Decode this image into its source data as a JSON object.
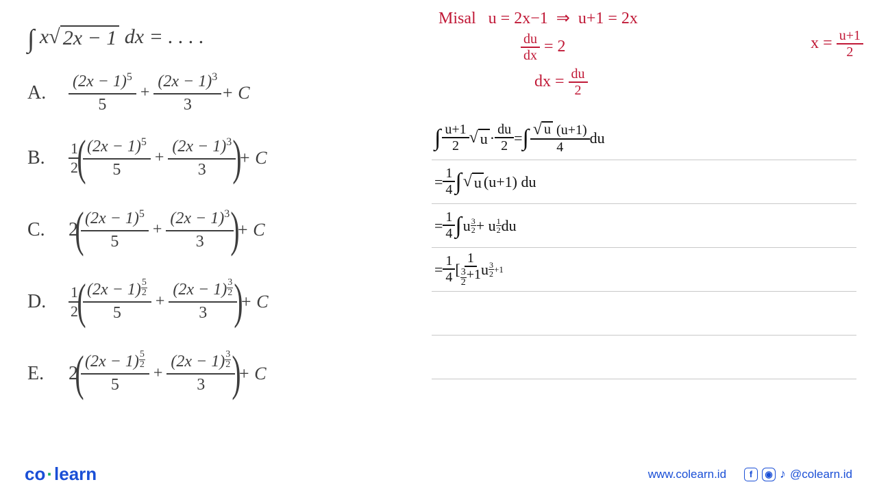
{
  "question": {
    "prefix_int": "∫",
    "xv": "x",
    "radicand": "2x − 1",
    "dx": " dx = . . . .",
    "font_color": "#3d3d3d"
  },
  "options": [
    {
      "label": "A.",
      "scalar": "",
      "num1": "(2x − 1)",
      "exp1": {
        "type": "int",
        "v": "5"
      },
      "den1": "5",
      "num2": "(2x − 1)",
      "exp2": {
        "type": "int",
        "v": "3"
      },
      "den2": "3",
      "tail": " + C",
      "paren": false
    },
    {
      "label": "B.",
      "scalar_frac": {
        "n": "1",
        "d": "2"
      },
      "num1": "(2x − 1)",
      "exp1": {
        "type": "int",
        "v": "5"
      },
      "den1": "5",
      "num2": "(2x − 1)",
      "exp2": {
        "type": "int",
        "v": "3"
      },
      "den2": "3",
      "tail": " + C",
      "paren": true
    },
    {
      "label": "C.",
      "scalar": "2",
      "num1": "(2x − 1)",
      "exp1": {
        "type": "int",
        "v": "5"
      },
      "den1": "5",
      "num2": "(2x − 1)",
      "exp2": {
        "type": "int",
        "v": "3"
      },
      "den2": "3",
      "tail": " + C",
      "paren": true
    },
    {
      "label": "D.",
      "scalar_frac": {
        "n": "1",
        "d": "2"
      },
      "num1": "(2x − 1)",
      "exp1": {
        "type": "frac",
        "n": "5",
        "d": "2"
      },
      "den1": "5",
      "num2": "(2x − 1)",
      "exp2": {
        "type": "frac",
        "n": "3",
        "d": "2"
      },
      "den2": "3",
      "tail": " + C",
      "paren": true
    },
    {
      "label": "E.",
      "scalar": "2",
      "num1": "(2x − 1)",
      "exp1": {
        "type": "frac",
        "n": "5",
        "d": "2"
      },
      "den1": "5",
      "num2": "(2x − 1)",
      "exp2": {
        "type": "frac",
        "n": "3",
        "d": "2"
      },
      "den2": "3",
      "tail": " + C",
      "paren": true
    }
  ],
  "handwriting": {
    "red": {
      "misal": "Misal",
      "u_eq": "u = 2x−1",
      "arrow": "⇒",
      "u1_2x": "u+1 = 2x",
      "x_eq": "x =",
      "x_frac_n": "u+1",
      "x_frac_d": "2",
      "dudx_n": "du",
      "dudx_d": "dx",
      "dudx_eq": "= 2",
      "dx_eq": "dx =",
      "dx_frac_n": "du",
      "dx_frac_d": "2",
      "color": "#c01836"
    },
    "lines": [
      {
        "parts": [
          {
            "t": "int"
          },
          {
            "t": "frac",
            "n": "u+1",
            "d": "2"
          },
          {
            "t": "sqrt",
            "v": "u"
          },
          {
            "t": "text",
            "v": " · "
          },
          {
            "t": "frac",
            "n": "du",
            "d": "2"
          },
          {
            "t": "text",
            "v": "  =  "
          },
          {
            "t": "int"
          },
          {
            "t": "frac_sqrt",
            "sq": "u",
            "rest": "(u+1)",
            "d": "4"
          },
          {
            "t": "text",
            "v": " du"
          }
        ]
      },
      {
        "parts": [
          {
            "t": "text",
            "v": "= "
          },
          {
            "t": "frac",
            "n": "1",
            "d": "4"
          },
          {
            "t": "int"
          },
          {
            "t": "sqrt",
            "v": "u"
          },
          {
            "t": "text",
            "v": " (u+1) du"
          }
        ]
      },
      {
        "parts": [
          {
            "t": "text",
            "v": "= "
          },
          {
            "t": "frac",
            "n": "1",
            "d": "4"
          },
          {
            "t": "int"
          },
          {
            "t": "text",
            "v": " u"
          },
          {
            "t": "supfrac",
            "n": "3",
            "d": "2"
          },
          {
            "t": "text",
            "v": " + u"
          },
          {
            "t": "supfrac",
            "n": "1",
            "d": "2"
          },
          {
            "t": "text",
            "v": "  du"
          }
        ]
      },
      {
        "parts": [
          {
            "t": "text",
            "v": "= "
          },
          {
            "t": "frac",
            "n": "1",
            "d": "4"
          },
          {
            "t": "text",
            "v": " [ "
          },
          {
            "t": "frac_expr",
            "n": "1",
            "d_frac": {
              "n": "3",
              "d": "2"
            },
            "d_tail": "+1"
          },
          {
            "t": "text",
            "v": " u"
          },
          {
            "t": "supfrac_plus",
            "n": "3",
            "d": "2",
            "tail": "+1"
          }
        ]
      }
    ],
    "ink_color": "#111111",
    "rule_color": "#c8c8c8"
  },
  "footer": {
    "logo_co": "co",
    "logo_learn": "learn",
    "url": "www.colearn.id",
    "handle": "@colearn.id",
    "brand_color": "#1a4fd6",
    "dot_color": "#18b05a"
  }
}
